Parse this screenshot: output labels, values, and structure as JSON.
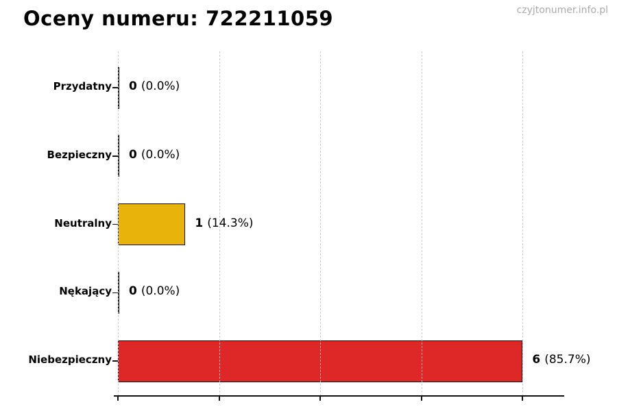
{
  "page": {
    "watermark": "czyjtonumer.info.pl",
    "background": "#ffffff"
  },
  "chart_data": {
    "type": "bar",
    "orientation": "horizontal",
    "title": "Oceny numeru: 722211059",
    "categories": [
      "Przydatny",
      "Bezpieczny",
      "Neutralny",
      "Nękający",
      "Niebezpieczny"
    ],
    "values": [
      0,
      0,
      1,
      0,
      6
    ],
    "value_labels": [
      {
        "count": "0",
        "percent": "(0.0%)"
      },
      {
        "count": "0",
        "percent": "(0.0%)"
      },
      {
        "count": "1",
        "percent": "(14.3%)"
      },
      {
        "count": "0",
        "percent": "(0.0%)"
      },
      {
        "count": "6",
        "percent": "(85.7%)"
      }
    ],
    "bar_colors": [
      "#000000",
      "#000000",
      "#e8b30b",
      "#000000",
      "#de2727"
    ],
    "bar_border_color": "#111111",
    "xlim": [
      0,
      6.62
    ],
    "xticks": [
      0,
      1.5,
      3,
      4.5,
      6
    ],
    "xtick_labels_visible": false,
    "grid": {
      "axis": "x",
      "style": "dashed",
      "color": "#c5c5c5"
    },
    "legend": "none",
    "xlabel": "",
    "ylabel": ""
  }
}
